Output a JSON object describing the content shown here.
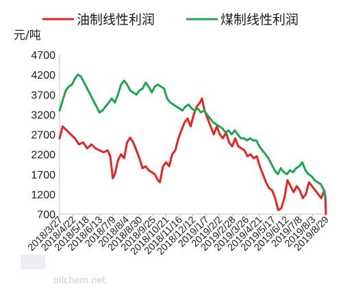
{
  "chart_data": {
    "type": "line",
    "unit_label": "元/吨",
    "ylim": [
      700,
      4700
    ],
    "yticks": [
      700,
      1200,
      1700,
      2200,
      2700,
      3200,
      3700,
      4200,
      4700
    ],
    "grid": false,
    "legend_placement": "top",
    "x_tick_labels": [
      "2018/3/27",
      "2018/4/22",
      "2018/5/18",
      "2018/6/13",
      "2018/7/9",
      "2018/8/4",
      "2018/8/30",
      "2018/9/25",
      "2018/10/21",
      "2018/11/16",
      "2018/12/12",
      "2019/1/7",
      "2019/2/2",
      "2019/2/28",
      "2019/3/26",
      "2019/4/21",
      "2019/5/17",
      "2019/6/12",
      "2019/7/8",
      "2019/8/3",
      "2019/8/29"
    ],
    "series": [
      {
        "name": "油制线性利润",
        "color": "#e8231f",
        "points": [
          [
            "2018/3/27",
            2600
          ],
          [
            "2018/4/2",
            2900
          ],
          [
            "2018/4/10",
            2800
          ],
          [
            "2018/4/18",
            2700
          ],
          [
            "2018/4/26",
            2600
          ],
          [
            "2018/5/4",
            2450
          ],
          [
            "2018/5/12",
            2500
          ],
          [
            "2018/5/20",
            2350
          ],
          [
            "2018/5/28",
            2450
          ],
          [
            "2018/6/5",
            2350
          ],
          [
            "2018/6/13",
            2300
          ],
          [
            "2018/6/21",
            2250
          ],
          [
            "2018/6/29",
            2300
          ],
          [
            "2018/7/4",
            2150
          ],
          [
            "2018/7/9",
            1600
          ],
          [
            "2018/7/13",
            1700
          ],
          [
            "2018/7/19",
            2050
          ],
          [
            "2018/7/25",
            2200
          ],
          [
            "2018/7/31",
            2100
          ],
          [
            "2018/8/6",
            2500
          ],
          [
            "2018/8/12",
            2620
          ],
          [
            "2018/8/18",
            2500
          ],
          [
            "2018/8/24",
            2300
          ],
          [
            "2018/8/30",
            2100
          ],
          [
            "2018/9/5",
            1850
          ],
          [
            "2018/9/11",
            1900
          ],
          [
            "2018/9/17",
            1800
          ],
          [
            "2018/9/23",
            1750
          ],
          [
            "2018/9/29",
            1700
          ],
          [
            "2018/10/5",
            1550
          ],
          [
            "2018/10/9",
            1500
          ],
          [
            "2018/10/15",
            1900
          ],
          [
            "2018/10/21",
            2000
          ],
          [
            "2018/10/27",
            1900
          ],
          [
            "2018/11/2",
            2200
          ],
          [
            "2018/11/8",
            2300
          ],
          [
            "2018/11/14",
            2600
          ],
          [
            "2018/11/20",
            2800
          ],
          [
            "2018/11/26",
            3000
          ],
          [
            "2018/12/2",
            3100
          ],
          [
            "2018/12/8",
            2900
          ],
          [
            "2018/12/14",
            3200
          ],
          [
            "2018/12/20",
            3400
          ],
          [
            "2018/12/26",
            3500
          ],
          [
            "2018/12/30",
            3600
          ],
          [
            "2019/1/4",
            3300
          ],
          [
            "2019/1/10",
            3100
          ],
          [
            "2019/1/16",
            2900
          ],
          [
            "2019/1/22",
            2700
          ],
          [
            "2019/1/28",
            2900
          ],
          [
            "2019/2/3",
            2700
          ],
          [
            "2019/2/9",
            2600
          ],
          [
            "2019/2/15",
            2750
          ],
          [
            "2019/2/21",
            2500
          ],
          [
            "2019/2/27",
            2400
          ],
          [
            "2019/3/5",
            2600
          ],
          [
            "2019/3/11",
            2400
          ],
          [
            "2019/3/17",
            2350
          ],
          [
            "2019/3/23",
            2300
          ],
          [
            "2019/3/29",
            2150
          ],
          [
            "2019/4/4",
            2200
          ],
          [
            "2019/4/10",
            2100
          ],
          [
            "2019/4/16",
            2150
          ],
          [
            "2019/4/22",
            1900
          ],
          [
            "2019/4/28",
            1700
          ],
          [
            "2019/5/4",
            1500
          ],
          [
            "2019/5/10",
            1350
          ],
          [
            "2019/5/16",
            1300
          ],
          [
            "2019/5/22",
            1100
          ],
          [
            "2019/5/28",
            800
          ],
          [
            "2019/6/3",
            850
          ],
          [
            "2019/6/9",
            1100
          ],
          [
            "2019/6/15",
            1550
          ],
          [
            "2019/6/21",
            1400
          ],
          [
            "2019/6/27",
            1250
          ],
          [
            "2019/7/3",
            1400
          ],
          [
            "2019/7/9",
            1300
          ],
          [
            "2019/7/15",
            1100
          ],
          [
            "2019/7/21",
            1200
          ],
          [
            "2019/7/27",
            1500
          ],
          [
            "2019/8/2",
            1400
          ],
          [
            "2019/8/8",
            1300
          ],
          [
            "2019/8/14",
            1200
          ],
          [
            "2019/8/20",
            1100
          ],
          [
            "2019/8/26",
            1300
          ],
          [
            "2019/8/28",
            1100
          ],
          [
            "2019/8/29",
            700
          ]
        ]
      },
      {
        "name": "煤制线性利润",
        "color": "#1aa64f",
        "points": [
          [
            "2018/3/27",
            3300
          ],
          [
            "2018/4/2",
            3550
          ],
          [
            "2018/4/8",
            3800
          ],
          [
            "2018/4/14",
            3900
          ],
          [
            "2018/4/20",
            3950
          ],
          [
            "2018/4/26",
            4100
          ],
          [
            "2018/5/2",
            4200
          ],
          [
            "2018/5/8",
            4150
          ],
          [
            "2018/5/14",
            4000
          ],
          [
            "2018/5/20",
            3850
          ],
          [
            "2018/5/26",
            3700
          ],
          [
            "2018/6/1",
            3550
          ],
          [
            "2018/6/7",
            3400
          ],
          [
            "2018/6/13",
            3250
          ],
          [
            "2018/6/19",
            3300
          ],
          [
            "2018/6/25",
            3400
          ],
          [
            "2018/7/1",
            3500
          ],
          [
            "2018/7/7",
            3600
          ],
          [
            "2018/7/13",
            3500
          ],
          [
            "2018/7/19",
            3700
          ],
          [
            "2018/7/25",
            3950
          ],
          [
            "2018/7/31",
            4050
          ],
          [
            "2018/8/6",
            3950
          ],
          [
            "2018/8/12",
            3800
          ],
          [
            "2018/8/18",
            3750
          ],
          [
            "2018/8/24",
            3700
          ],
          [
            "2018/8/30",
            3800
          ],
          [
            "2018/9/5",
            3850
          ],
          [
            "2018/9/11",
            4000
          ],
          [
            "2018/9/17",
            3900
          ],
          [
            "2018/9/23",
            3750
          ],
          [
            "2018/9/29",
            3900
          ],
          [
            "2018/10/5",
            3950
          ],
          [
            "2018/10/11",
            3900
          ],
          [
            "2018/10/17",
            3850
          ],
          [
            "2018/10/23",
            3600
          ],
          [
            "2018/10/29",
            3500
          ],
          [
            "2018/11/4",
            3450
          ],
          [
            "2018/11/10",
            3400
          ],
          [
            "2018/11/16",
            3350
          ],
          [
            "2018/11/22",
            3300
          ],
          [
            "2018/11/28",
            3400
          ],
          [
            "2018/12/4",
            3450
          ],
          [
            "2018/12/10",
            3350
          ],
          [
            "2018/12/16",
            3300
          ],
          [
            "2018/12/22",
            3350
          ],
          [
            "2018/12/28",
            3250
          ],
          [
            "2019/1/3",
            3300
          ],
          [
            "2019/1/9",
            3200
          ],
          [
            "2019/1/15",
            3100
          ],
          [
            "2019/1/21",
            3000
          ],
          [
            "2019/1/27",
            2950
          ],
          [
            "2019/2/2",
            2900
          ],
          [
            "2019/2/8",
            2850
          ],
          [
            "2019/2/14",
            2750
          ],
          [
            "2019/2/20",
            2800
          ],
          [
            "2019/2/26",
            2700
          ],
          [
            "2019/3/4",
            2800
          ],
          [
            "2019/3/10",
            2700
          ],
          [
            "2019/3/16",
            2600
          ],
          [
            "2019/3/22",
            2600
          ],
          [
            "2019/3/28",
            2550
          ],
          [
            "2019/4/3",
            2600
          ],
          [
            "2019/4/9",
            2550
          ],
          [
            "2019/4/15",
            2550
          ],
          [
            "2019/4/21",
            2400
          ],
          [
            "2019/4/27",
            2300
          ],
          [
            "2019/5/3",
            2200
          ],
          [
            "2019/5/9",
            2100
          ],
          [
            "2019/5/15",
            1950
          ],
          [
            "2019/5/21",
            1800
          ],
          [
            "2019/5/27",
            1700
          ],
          [
            "2019/6/2",
            1850
          ],
          [
            "2019/6/8",
            1750
          ],
          [
            "2019/6/14",
            1700
          ],
          [
            "2019/6/20",
            1800
          ],
          [
            "2019/6/26",
            1750
          ],
          [
            "2019/7/2",
            1850
          ],
          [
            "2019/7/8",
            1900
          ],
          [
            "2019/7/14",
            2000
          ],
          [
            "2019/7/20",
            1800
          ],
          [
            "2019/7/26",
            1700
          ],
          [
            "2019/8/1",
            1650
          ],
          [
            "2019/8/7",
            1550
          ],
          [
            "2019/8/13",
            1500
          ],
          [
            "2019/8/19",
            1450
          ],
          [
            "2019/8/25",
            1300
          ],
          [
            "2019/8/29",
            1100
          ]
        ]
      }
    ]
  },
  "watermark": {
    "text": "oilchem.net"
  }
}
